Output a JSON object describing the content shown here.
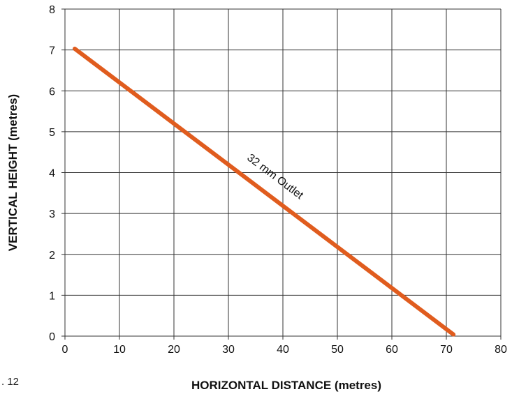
{
  "chart_data": {
    "type": "line",
    "xlabel": "HORIZONTAL DISTANCE (metres)",
    "ylabel": "VERTICAL HEIGHT (metres)",
    "xlim": [
      0,
      80
    ],
    "ylim": [
      0,
      8
    ],
    "xticks": [
      0,
      10,
      20,
      30,
      40,
      50,
      60,
      70,
      80
    ],
    "yticks": [
      0,
      1,
      2,
      3,
      4,
      5,
      6,
      7,
      8
    ],
    "grid": true,
    "series": [
      {
        "name": "32 mm Outlet",
        "color": "#e05c1e",
        "x": [
          1.8,
          71.3
        ],
        "y": [
          7.03,
          0.04
        ]
      }
    ],
    "annotations": [
      {
        "text": "32 mm Outlet",
        "x": 40,
        "y": 3.7
      }
    ]
  },
  "page": {
    "corner_note": ". 12"
  }
}
